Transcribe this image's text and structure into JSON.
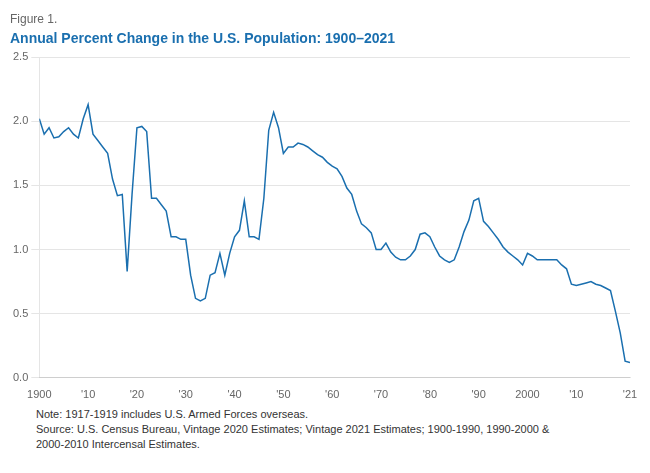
{
  "chart_data": {
    "type": "line",
    "title": "Annual Percent Change in the U.S. Population: 1900–2021",
    "subtitle": "Figure 1.",
    "annotations": [
      "Note: 1917-1919 includes U.S. Armed Forces overseas.",
      "Source: U.S. Census Bureau, Vintage 2020 Estimates; Vintage 2021 Estimates; 1900-1990, 1990-2000 &",
      "2000-2010 Intercensal Estimates."
    ],
    "color": "#1a6faf",
    "grid": "y",
    "xlim": [
      1900,
      2021
    ],
    "xticks": [
      1900,
      {
        "value": 1910,
        "label": "'10"
      },
      {
        "value": 1920,
        "label": "'20"
      },
      {
        "value": 1930,
        "label": "'30"
      },
      {
        "value": 1940,
        "label": "'40"
      },
      {
        "value": 1950,
        "label": "'50"
      },
      {
        "value": 1960,
        "label": "'60"
      },
      {
        "value": 1970,
        "label": "'70"
      },
      {
        "value": 1980,
        "label": "'80"
      },
      {
        "value": 1990,
        "label": "'90"
      },
      2000,
      {
        "value": 2010,
        "label": "'10"
      },
      {
        "value": 2021,
        "label": "'21"
      }
    ],
    "ylim": [
      0,
      2.5
    ],
    "yticks": [
      {
        "value": 0,
        "label": "0.0"
      },
      0.5,
      {
        "value": 1.0,
        "label": "1.0"
      },
      1.5,
      {
        "value": 2.0,
        "label": "2.0"
      },
      2.5
    ],
    "x": [
      1900,
      1901,
      1902,
      1903,
      1904,
      1905,
      1906,
      1907,
      1908,
      1909,
      1910,
      1911,
      1912,
      1913,
      1914,
      1915,
      1916,
      1917,
      1918,
      1919,
      1920,
      1921,
      1922,
      1923,
      1924,
      1925,
      1926,
      1927,
      1928,
      1929,
      1930,
      1931,
      1932,
      1933,
      1934,
      1935,
      1936,
      1937,
      1938,
      1939,
      1940,
      1941,
      1942,
      1943,
      1944,
      1945,
      1946,
      1947,
      1948,
      1949,
      1950,
      1951,
      1952,
      1953,
      1954,
      1955,
      1956,
      1957,
      1958,
      1959,
      1960,
      1961,
      1962,
      1963,
      1964,
      1965,
      1966,
      1967,
      1968,
      1969,
      1970,
      1971,
      1972,
      1973,
      1974,
      1975,
      1976,
      1977,
      1978,
      1979,
      1980,
      1981,
      1982,
      1983,
      1984,
      1985,
      1986,
      1987,
      1988,
      1989,
      1990,
      1991,
      1992,
      1993,
      1994,
      1995,
      1996,
      1997,
      1998,
      1999,
      2000,
      2001,
      2002,
      2003,
      2004,
      2005,
      2006,
      2007,
      2008,
      2009,
      2010,
      2011,
      2012,
      2013,
      2014,
      2015,
      2016,
      2017,
      2018,
      2019,
      2020,
      2021
    ],
    "values": [
      2.02,
      1.9,
      1.95,
      1.87,
      1.88,
      1.92,
      1.95,
      1.9,
      1.87,
      2.02,
      2.13,
      1.9,
      1.85,
      1.8,
      1.75,
      1.55,
      1.42,
      1.43,
      0.83,
      1.43,
      1.95,
      1.96,
      1.92,
      1.4,
      1.4,
      1.35,
      1.3,
      1.1,
      1.1,
      1.08,
      1.08,
      0.8,
      0.62,
      0.6,
      0.62,
      0.8,
      0.82,
      0.97,
      0.8,
      0.97,
      1.1,
      1.15,
      1.38,
      1.1,
      1.1,
      1.08,
      1.4,
      1.93,
      2.07,
      1.95,
      1.75,
      1.8,
      1.8,
      1.83,
      1.82,
      1.8,
      1.77,
      1.74,
      1.72,
      1.68,
      1.65,
      1.63,
      1.57,
      1.48,
      1.43,
      1.3,
      1.2,
      1.17,
      1.13,
      1.0,
      1.0,
      1.05,
      0.98,
      0.94,
      0.92,
      0.92,
      0.95,
      1.0,
      1.12,
      1.13,
      1.1,
      1.02,
      0.95,
      0.92,
      0.9,
      0.92,
      1.02,
      1.14,
      1.23,
      1.38,
      1.4,
      1.22,
      1.18,
      1.13,
      1.08,
      1.02,
      0.98,
      0.95,
      0.92,
      0.88,
      0.97,
      0.95,
      0.92,
      0.92,
      0.92,
      0.92,
      0.92,
      0.88,
      0.85,
      0.73,
      0.72,
      0.73,
      0.74,
      0.75,
      0.73,
      0.72,
      0.7,
      0.68,
      0.52,
      0.35,
      0.13,
      0.12
    ]
  }
}
